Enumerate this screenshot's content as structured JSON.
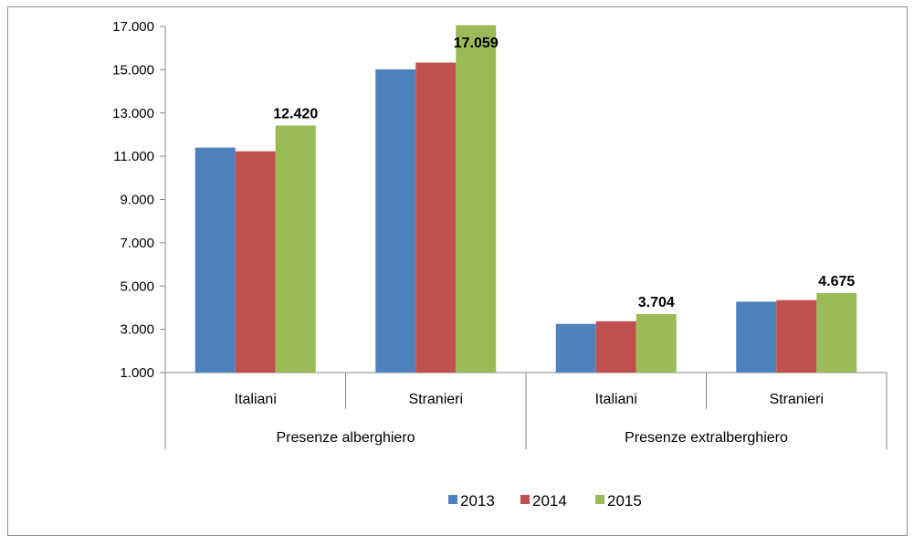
{
  "chart_data": {
    "type": "bar",
    "groups": [
      {
        "label": "Presenze alberghiero",
        "categories": [
          "Italiani",
          "Stranieri"
        ]
      },
      {
        "label": "Presenze extralberghiero",
        "categories": [
          "Italiani",
          "Stranieri"
        ]
      }
    ],
    "categories": [
      "Italiani",
      "Stranieri",
      "Italiani",
      "Stranieri"
    ],
    "series": [
      {
        "name": "2013",
        "color": "#4f81bd",
        "values": [
          11400,
          15020,
          3250,
          4280
        ]
      },
      {
        "name": "2014",
        "color": "#c0504d",
        "values": [
          11230,
          15330,
          3370,
          4350
        ]
      },
      {
        "name": "2015",
        "color": "#9bbb59",
        "values": [
          12420,
          17059,
          3704,
          4675
        ]
      }
    ],
    "data_labels": [
      "12.420",
      "17.059",
      "3.704",
      "4.675"
    ],
    "data_label_series": "2015",
    "yticks": [
      "1.000",
      "3.000",
      "5.000",
      "7.000",
      "9.000",
      "11.000",
      "13.000",
      "15.000",
      "17.000"
    ],
    "ylim": [
      1000,
      17000
    ],
    "grid": false,
    "legend": "bottom"
  }
}
